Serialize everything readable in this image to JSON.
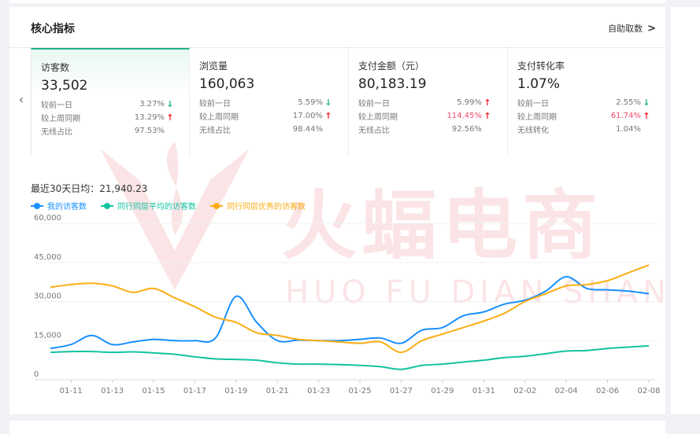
{
  "card": {
    "title": "核心指标",
    "link_label": "自助取数"
  },
  "metrics": [
    {
      "name": "访客数",
      "value": "33,502",
      "rows": [
        {
          "label": "较前一日",
          "value": "3.27%",
          "dir": "down",
          "red": false
        },
        {
          "label": "较上周同期",
          "value": "13.29%",
          "dir": "up",
          "red": false
        },
        {
          "label": "无线占比",
          "value": "97.53%",
          "dir": "",
          "red": false
        }
      ]
    },
    {
      "name": "浏览量",
      "value": "160,063",
      "rows": [
        {
          "label": "较前一日",
          "value": "5.59%",
          "dir": "down",
          "red": false
        },
        {
          "label": "较上周同期",
          "value": "17.00%",
          "dir": "up",
          "red": false
        },
        {
          "label": "无线占比",
          "value": "98.44%",
          "dir": "",
          "red": false
        }
      ]
    },
    {
      "name": "支付金额（元）",
      "value": "80,183.19",
      "rows": [
        {
          "label": "较前一日",
          "value": "5.99%",
          "dir": "up",
          "red": false
        },
        {
          "label": "较上周同期",
          "value": "114.45%",
          "dir": "up",
          "red": true
        },
        {
          "label": "无线占比",
          "value": "92.56%",
          "dir": "",
          "red": false
        }
      ]
    },
    {
      "name": "支付转化率",
      "value": "1.07%",
      "rows": [
        {
          "label": "较前一日",
          "value": "2.55%",
          "dir": "down",
          "red": false
        },
        {
          "label": "较上周同期",
          "value": "61.74%",
          "dir": "up",
          "red": true
        },
        {
          "label": "无线转化",
          "value": "1.04%",
          "dir": "",
          "red": false
        }
      ]
    }
  ],
  "icons": {
    "prev": "chevron-left-icon",
    "next": "chevron-right-icon",
    "up": "arrow-up-icon",
    "down": "arrow-down-icon"
  },
  "colors": {
    "accent": "#1fb38a",
    "up_red": "#f5222d",
    "down_green": "#1fb38a"
  },
  "watermark": {
    "text": "火蝠电商",
    "sub": "HUO FU DIAN SHANG"
  },
  "avg_label": "最近30天日均：21,940.23",
  "chart_data": {
    "type": "line",
    "x": [
      "01-10",
      "01-11",
      "01-12",
      "01-13",
      "01-14",
      "01-15",
      "01-16",
      "01-17",
      "01-18",
      "01-19",
      "01-20",
      "01-21",
      "01-22",
      "01-23",
      "01-24",
      "01-25",
      "01-26",
      "01-27",
      "01-28",
      "01-29",
      "01-30",
      "01-31",
      "02-01",
      "02-02",
      "02-03",
      "02-04",
      "02-05",
      "02-06",
      "02-07",
      "02-08"
    ],
    "xticks": [
      "01-11",
      "01-13",
      "01-15",
      "01-17",
      "01-19",
      "01-21",
      "01-23",
      "01-25",
      "01-27",
      "01-29",
      "01-31",
      "02-02",
      "02-04",
      "02-06",
      "02-08"
    ],
    "yticks": [
      0,
      15000,
      30000,
      45000,
      60000
    ],
    "ytick_labels": [
      "0",
      "15,000",
      "30,000",
      "45,000",
      "60,000"
    ],
    "ylim": [
      0,
      60000
    ],
    "grid": true,
    "legend_position": "top-left",
    "series": [
      {
        "name": "我的访客数",
        "color": "#1890ff",
        "values": [
          12000,
          13500,
          17000,
          13500,
          14500,
          15500,
          15000,
          15000,
          16000,
          32000,
          22000,
          15000,
          15200,
          15000,
          15000,
          15500,
          16000,
          14000,
          19000,
          20000,
          24500,
          26000,
          29000,
          30500,
          34000,
          39500,
          35000,
          34500,
          34000,
          33000
        ]
      },
      {
        "name": "同行同层平均的访客数",
        "color": "#13c2a0",
        "values": [
          10500,
          10800,
          10800,
          10500,
          10700,
          10300,
          9800,
          8800,
          8000,
          7800,
          7500,
          6500,
          6000,
          6000,
          5800,
          5500,
          5000,
          4000,
          5500,
          6000,
          6800,
          7500,
          8500,
          9000,
          10000,
          11000,
          11200,
          12000,
          12500,
          13000
        ]
      },
      {
        "name": "同行同层优秀的访客数",
        "color": "#faad14",
        "values": [
          35500,
          36500,
          37000,
          36000,
          33500,
          35000,
          31500,
          28000,
          24000,
          22000,
          18000,
          17000,
          15500,
          15000,
          14500,
          14000,
          14500,
          10500,
          15000,
          17500,
          20000,
          22500,
          25500,
          30000,
          33000,
          36000,
          36500,
          38000,
          41000,
          44000
        ]
      }
    ]
  }
}
